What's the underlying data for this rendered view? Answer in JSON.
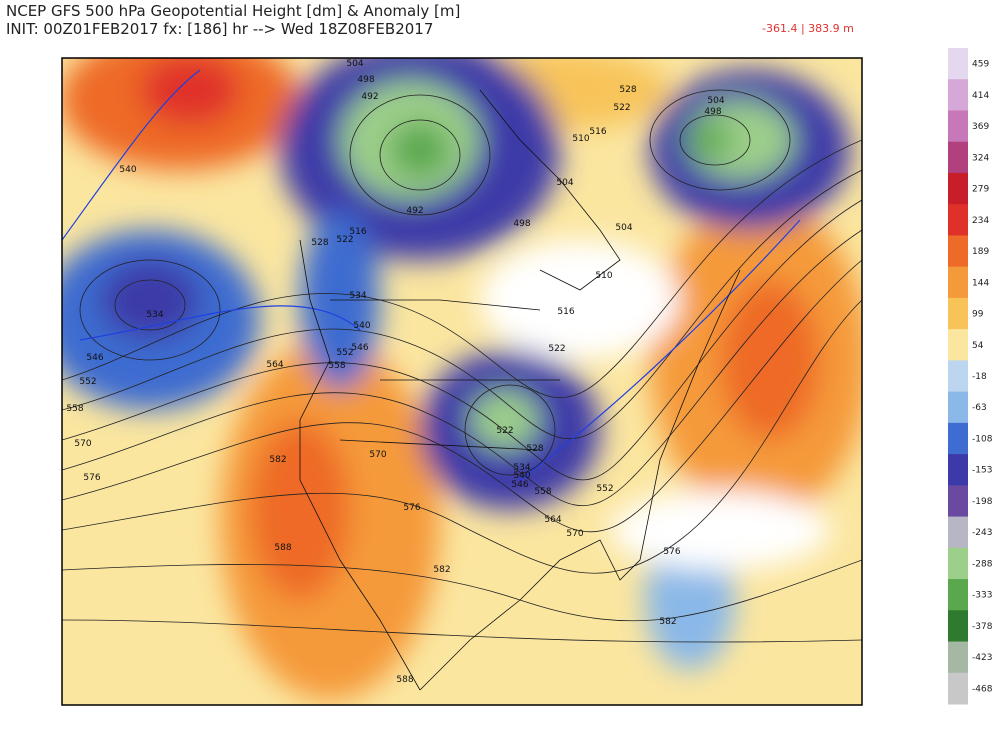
{
  "header": {
    "title": "NCEP GFS 500 hPa Geopotential Height [dm] & Anomaly [m]",
    "subtitle": "INIT: 00Z01FEB2017  fx: [186] hr --> Wed 18Z08FEB2017",
    "range": "-361.4 | 383.9 m"
  },
  "colorbar": {
    "ticks": [
      459,
      414,
      369,
      324,
      279,
      234,
      189,
      144,
      99,
      54,
      -18,
      -63,
      -108,
      -153,
      -198,
      -243,
      -288,
      -333,
      -378,
      -423,
      -468
    ],
    "colors": [
      "#e4d8ee",
      "#d6a8d8",
      "#c778b8",
      "#b0407e",
      "#c81e2a",
      "#e0302a",
      "#ee6a28",
      "#f59a3a",
      "#f8c45a",
      "#fbe6a0",
      "#bcd6f0",
      "#8ab8e8",
      "#3e6cd0",
      "#3c3aa8",
      "#6a4aa0",
      "#b6b6c4",
      "#9ccf8a",
      "#5aa84e",
      "#2e7a2e",
      "#a4b8a4",
      "#c8c8c8"
    ]
  },
  "contours": [
    "504",
    "498",
    "492",
    "492",
    "516",
    "522",
    "528",
    "534",
    "540",
    "546",
    "552",
    "558",
    "564",
    "570",
    "576",
    "582",
    "588",
    "582",
    "588",
    "570",
    "564",
    "558",
    "552",
    "546",
    "540",
    "534",
    "528",
    "522",
    "522",
    "516",
    "510",
    "504",
    "498",
    "504",
    "510",
    "516",
    "522",
    "528",
    "504",
    "498",
    "540",
    "534",
    "546",
    "552",
    "558",
    "570",
    "576",
    "576",
    "582"
  ]
}
